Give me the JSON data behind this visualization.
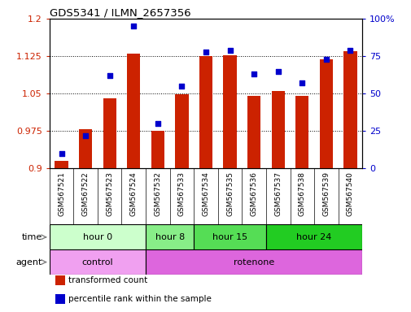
{
  "title": "GDS5341 / ILMN_2657356",
  "samples": [
    "GSM567521",
    "GSM567522",
    "GSM567523",
    "GSM567524",
    "GSM567532",
    "GSM567533",
    "GSM567534",
    "GSM567535",
    "GSM567536",
    "GSM567537",
    "GSM567538",
    "GSM567539",
    "GSM567540"
  ],
  "bar_values": [
    0.915,
    0.978,
    1.04,
    1.13,
    0.975,
    1.048,
    1.125,
    1.127,
    1.046,
    1.055,
    1.046,
    1.118,
    1.135
  ],
  "dot_values": [
    10,
    22,
    62,
    95,
    30,
    55,
    78,
    79,
    63,
    65,
    57,
    73,
    79
  ],
  "ylim_left": [
    0.9,
    1.2
  ],
  "ylim_right": [
    0,
    100
  ],
  "yticks_left": [
    0.9,
    0.975,
    1.05,
    1.125,
    1.2
  ],
  "yticks_right": [
    0,
    25,
    50,
    75,
    100
  ],
  "ytick_labels_left": [
    "0.9",
    "0.975",
    "1.05",
    "1.125",
    "1.2"
  ],
  "ytick_labels_right": [
    "0",
    "25",
    "50",
    "75",
    "100%"
  ],
  "bar_color": "#cc2200",
  "dot_color": "#0000cc",
  "time_groups": [
    {
      "label": "hour 0",
      "start": 0,
      "end": 4,
      "color": "#ccffcc"
    },
    {
      "label": "hour 8",
      "start": 4,
      "end": 6,
      "color": "#88ee88"
    },
    {
      "label": "hour 15",
      "start": 6,
      "end": 9,
      "color": "#55dd55"
    },
    {
      "label": "hour 24",
      "start": 9,
      "end": 13,
      "color": "#22cc22"
    }
  ],
  "agent_groups": [
    {
      "label": "control",
      "start": 0,
      "end": 4,
      "color": "#f0a0f0"
    },
    {
      "label": "rotenone",
      "start": 4,
      "end": 13,
      "color": "#dd66dd"
    }
  ],
  "legend_items": [
    {
      "label": "transformed count",
      "color": "#cc2200"
    },
    {
      "label": "percentile rank within the sample",
      "color": "#0000cc"
    }
  ],
  "n_samples": 13,
  "grid_yticks": [
    0.975,
    1.05,
    1.125
  ]
}
